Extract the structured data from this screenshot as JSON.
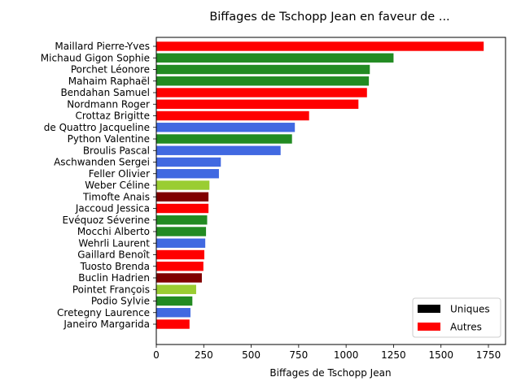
{
  "chart_data": {
    "type": "bar",
    "orientation": "horizontal",
    "title": "Biffages de Tschopp Jean en faveur de ...",
    "xlabel": "Biffages de Tschopp Jean",
    "ylabel": "",
    "xlim": [
      0,
      1800
    ],
    "xticks": [
      0,
      250,
      500,
      750,
      1000,
      1250,
      1500,
      1750
    ],
    "grid": false,
    "legend": {
      "placement": "lower-right",
      "entries": [
        {
          "label": "Uniques",
          "color": "#000000"
        },
        {
          "label": "Autres",
          "color": "#ff0000"
        }
      ]
    },
    "bars": [
      {
        "name": "Maillard Pierre-Yves",
        "value": 1725,
        "color": "#ff0000"
      },
      {
        "name": "Michaud Gigon Sophie",
        "value": 1250,
        "color": "#228b22"
      },
      {
        "name": "Porchet Léonore",
        "value": 1125,
        "color": "#228b22"
      },
      {
        "name": "Mahaim Raphaël",
        "value": 1120,
        "color": "#228b22"
      },
      {
        "name": "Bendahan Samuel",
        "value": 1110,
        "color": "#ff0000"
      },
      {
        "name": "Nordmann Roger",
        "value": 1065,
        "color": "#ff0000"
      },
      {
        "name": "Crottaz Brigitte",
        "value": 805,
        "color": "#ff0000"
      },
      {
        "name": "de Quattro Jacqueline",
        "value": 730,
        "color": "#4169e1"
      },
      {
        "name": "Python Valentine",
        "value": 715,
        "color": "#228b22"
      },
      {
        "name": "Broulis Pascal",
        "value": 655,
        "color": "#4169e1"
      },
      {
        "name": "Aschwanden Sergei",
        "value": 340,
        "color": "#4169e1"
      },
      {
        "name": "Feller Olivier",
        "value": 330,
        "color": "#4169e1"
      },
      {
        "name": "Weber Céline",
        "value": 280,
        "color": "#9acd32"
      },
      {
        "name": "Timofte Anais",
        "value": 275,
        "color": "#800000"
      },
      {
        "name": "Jaccoud Jessica",
        "value": 275,
        "color": "#ff0000"
      },
      {
        "name": "Evéquoz Séverine",
        "value": 268,
        "color": "#228b22"
      },
      {
        "name": "Mocchi Alberto",
        "value": 262,
        "color": "#228b22"
      },
      {
        "name": "Wehrli Laurent",
        "value": 258,
        "color": "#4169e1"
      },
      {
        "name": "Gaillard Benoît",
        "value": 253,
        "color": "#ff0000"
      },
      {
        "name": "Tuosto Brenda",
        "value": 248,
        "color": "#ff0000"
      },
      {
        "name": "Buclin Hadrien",
        "value": 240,
        "color": "#800000"
      },
      {
        "name": "Pointet François",
        "value": 210,
        "color": "#9acd32"
      },
      {
        "name": "Podio Sylvie",
        "value": 190,
        "color": "#228b22"
      },
      {
        "name": "Cretegny Laurence",
        "value": 180,
        "color": "#4169e1"
      },
      {
        "name": "Janeiro Margarida",
        "value": 175,
        "color": "#ff0000"
      }
    ]
  }
}
